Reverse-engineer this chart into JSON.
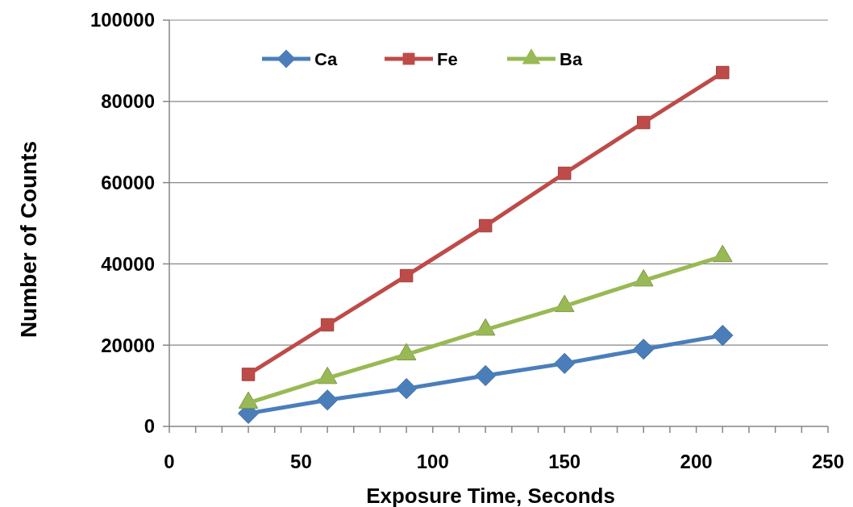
{
  "chart_data": {
    "type": "line",
    "xlabel": "Exposure Time, Seconds",
    "ylabel": "Number of Counts",
    "x": [
      30,
      60,
      90,
      120,
      150,
      180,
      210
    ],
    "series": [
      {
        "name": "Ca",
        "color": "#4a7ebb",
        "marker": "diamond",
        "values": [
          3200,
          6500,
          9300,
          12500,
          15500,
          19000,
          22400
        ]
      },
      {
        "name": "Fe",
        "color": "#be4b48",
        "marker": "square",
        "values": [
          12800,
          25000,
          37100,
          49400,
          62300,
          74800,
          87100
        ]
      },
      {
        "name": "Ba",
        "color": "#98b954",
        "marker": "triangle",
        "values": [
          5800,
          11900,
          17700,
          23800,
          29600,
          35900,
          41900
        ]
      }
    ],
    "xlim": [
      0,
      250
    ],
    "xticks": [
      0,
      {
        "value": 10,
        "label": null
      },
      {
        "value": 20,
        "label": null
      },
      {
        "value": 30,
        "label": null
      },
      {
        "value": 40,
        "label": null
      },
      50,
      {
        "value": 60,
        "label": null
      },
      {
        "value": 70,
        "label": null
      },
      {
        "value": 80,
        "label": null
      },
      {
        "value": 90,
        "label": null
      },
      100,
      {
        "value": 110,
        "label": null
      },
      {
        "value": 120,
        "label": null
      },
      {
        "value": 130,
        "label": null
      },
      {
        "value": 140,
        "label": null
      },
      150,
      {
        "value": 160,
        "label": null
      },
      {
        "value": 170,
        "label": null
      },
      {
        "value": 180,
        "label": null
      },
      {
        "value": 190,
        "label": null
      },
      200,
      {
        "value": 210,
        "label": null
      },
      {
        "value": 220,
        "label": null
      },
      {
        "value": 230,
        "label": null
      },
      {
        "value": 240,
        "label": null
      },
      250
    ],
    "ylim": [
      0,
      100000
    ],
    "yticks": [
      0,
      20000,
      40000,
      60000,
      80000,
      100000
    ],
    "grid": "y",
    "legend": "top",
    "line_style": "solid"
  }
}
